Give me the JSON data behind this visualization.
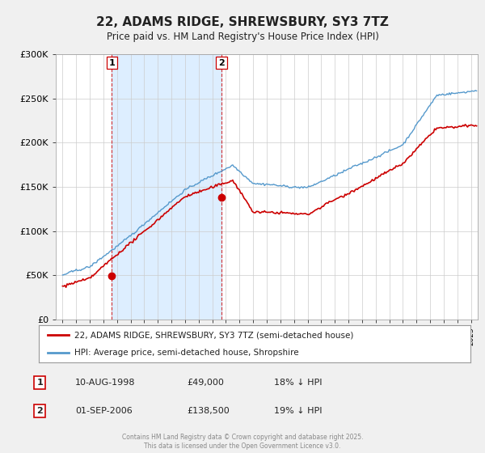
{
  "title": "22, ADAMS RIDGE, SHREWSBURY, SY3 7TZ",
  "subtitle": "Price paid vs. HM Land Registry's House Price Index (HPI)",
  "legend_label_red": "22, ADAMS RIDGE, SHREWSBURY, SY3 7TZ (semi-detached house)",
  "legend_label_blue": "HPI: Average price, semi-detached house, Shropshire",
  "footer": "Contains HM Land Registry data © Crown copyright and database right 2025.\nThis data is licensed under the Open Government Licence v3.0.",
  "red_color": "#cc0000",
  "blue_color": "#5599cc",
  "shade_color": "#ddeeff",
  "vline_color": "#cc0000",
  "background_color": "#f0f0f0",
  "plot_bg_color": "#ffffff",
  "purchases": [
    {
      "label": "1",
      "date": "10-AUG-1998",
      "price": 49000,
      "x": 1998.61
    },
    {
      "label": "2",
      "date": "01-SEP-2006",
      "price": 138500,
      "x": 2006.67
    }
  ],
  "table_rows": [
    [
      "1",
      "10-AUG-1998",
      "£49,000",
      "18% ↓ HPI"
    ],
    [
      "2",
      "01-SEP-2006",
      "£138,500",
      "19% ↓ HPI"
    ]
  ],
  "ylim": [
    0,
    300000
  ],
  "xlim": [
    1994.5,
    2025.5
  ],
  "yticks": [
    0,
    50000,
    100000,
    150000,
    200000,
    250000,
    300000
  ],
  "ytick_labels": [
    "£0",
    "£50K",
    "£100K",
    "£150K",
    "£200K",
    "£250K",
    "£300K"
  ]
}
